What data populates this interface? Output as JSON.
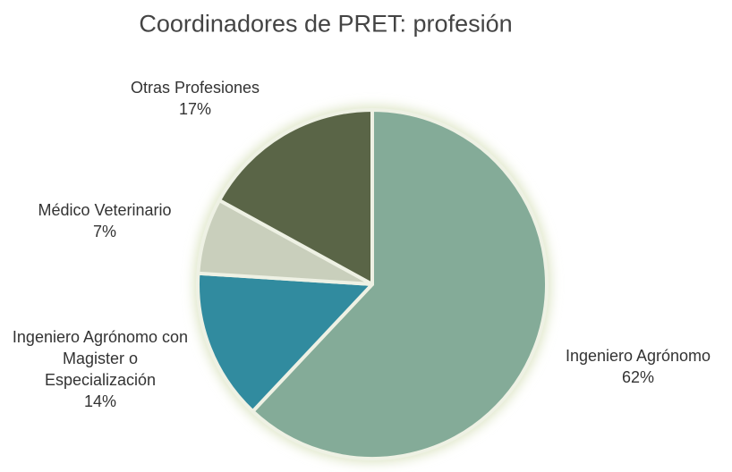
{
  "chart_data": {
    "type": "pie",
    "title": "Coordinadores de PRET: profesión",
    "categories": [
      "Ingeniero Agrónomo",
      "Ingeniero Agrónomo con Magister o Especialización",
      "Médico Veterinario",
      "Otras Profesiones"
    ],
    "values": [
      62,
      14,
      7,
      17
    ],
    "value_labels": [
      "62%",
      "14%",
      "7%",
      "17%"
    ],
    "colors": [
      "#84ab98",
      "#318b9f",
      "#c9cfbc",
      "#5a6547"
    ]
  }
}
